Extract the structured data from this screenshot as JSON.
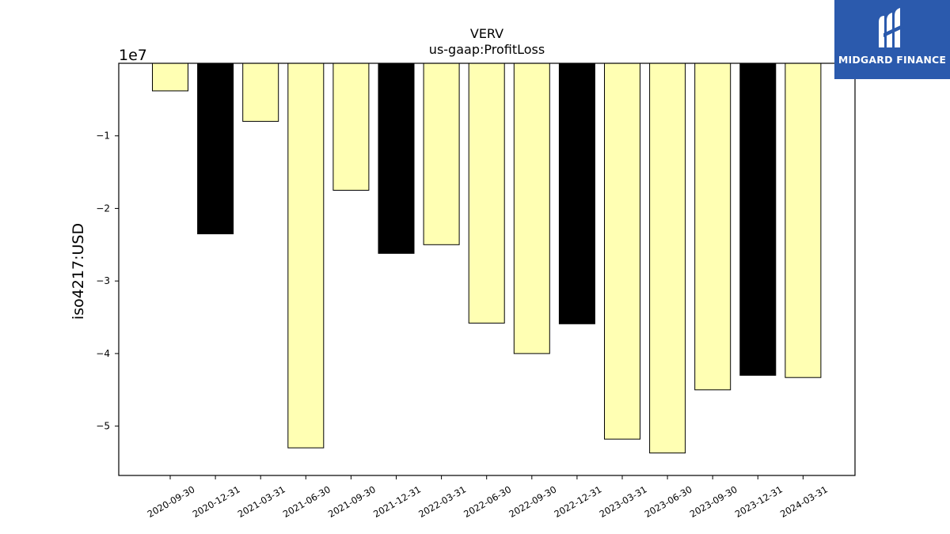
{
  "chart_data": {
    "type": "bar",
    "title": "VERV",
    "subtitle": "us-gaap:ProfitLoss",
    "ylabel": "iso4217:USD",
    "xlabel": "",
    "offset_label": "1e7",
    "ylim": [
      -5.68,
      0
    ],
    "yticks": [
      -1,
      -2,
      -3,
      -4,
      -5
    ],
    "ytick_labels": [
      "−1",
      "−2",
      "−3",
      "−4",
      "−5"
    ],
    "categories": [
      "2020-09-30",
      "2020-12-31",
      "2021-03-31",
      "2021-06-30",
      "2021-09-30",
      "2021-12-31",
      "2022-03-31",
      "2022-06-30",
      "2022-09-30",
      "2022-12-31",
      "2023-03-31",
      "2023-06-30",
      "2023-09-30",
      "2023-12-31",
      "2024-03-31"
    ],
    "values": [
      -0.38,
      -2.35,
      -0.8,
      -5.3,
      -1.75,
      -2.62,
      -2.5,
      -3.58,
      -4.0,
      -3.59,
      -5.18,
      -5.37,
      -4.5,
      -4.3,
      -4.33
    ],
    "bar_fill": [
      "#ffffb3",
      "#000000",
      "#ffffb3",
      "#ffffb3",
      "#ffffb3",
      "#000000",
      "#ffffb3",
      "#ffffb3",
      "#ffffb3",
      "#000000",
      "#ffffb3",
      "#ffffb3",
      "#ffffb3",
      "#000000",
      "#ffffb3"
    ],
    "bar_edge_color": "#000000",
    "grid": false,
    "legend": "none"
  },
  "logo": {
    "text": "MIDGARD FINANCE",
    "background": "#2b5aad",
    "icon": "midgard-logo-icon"
  }
}
